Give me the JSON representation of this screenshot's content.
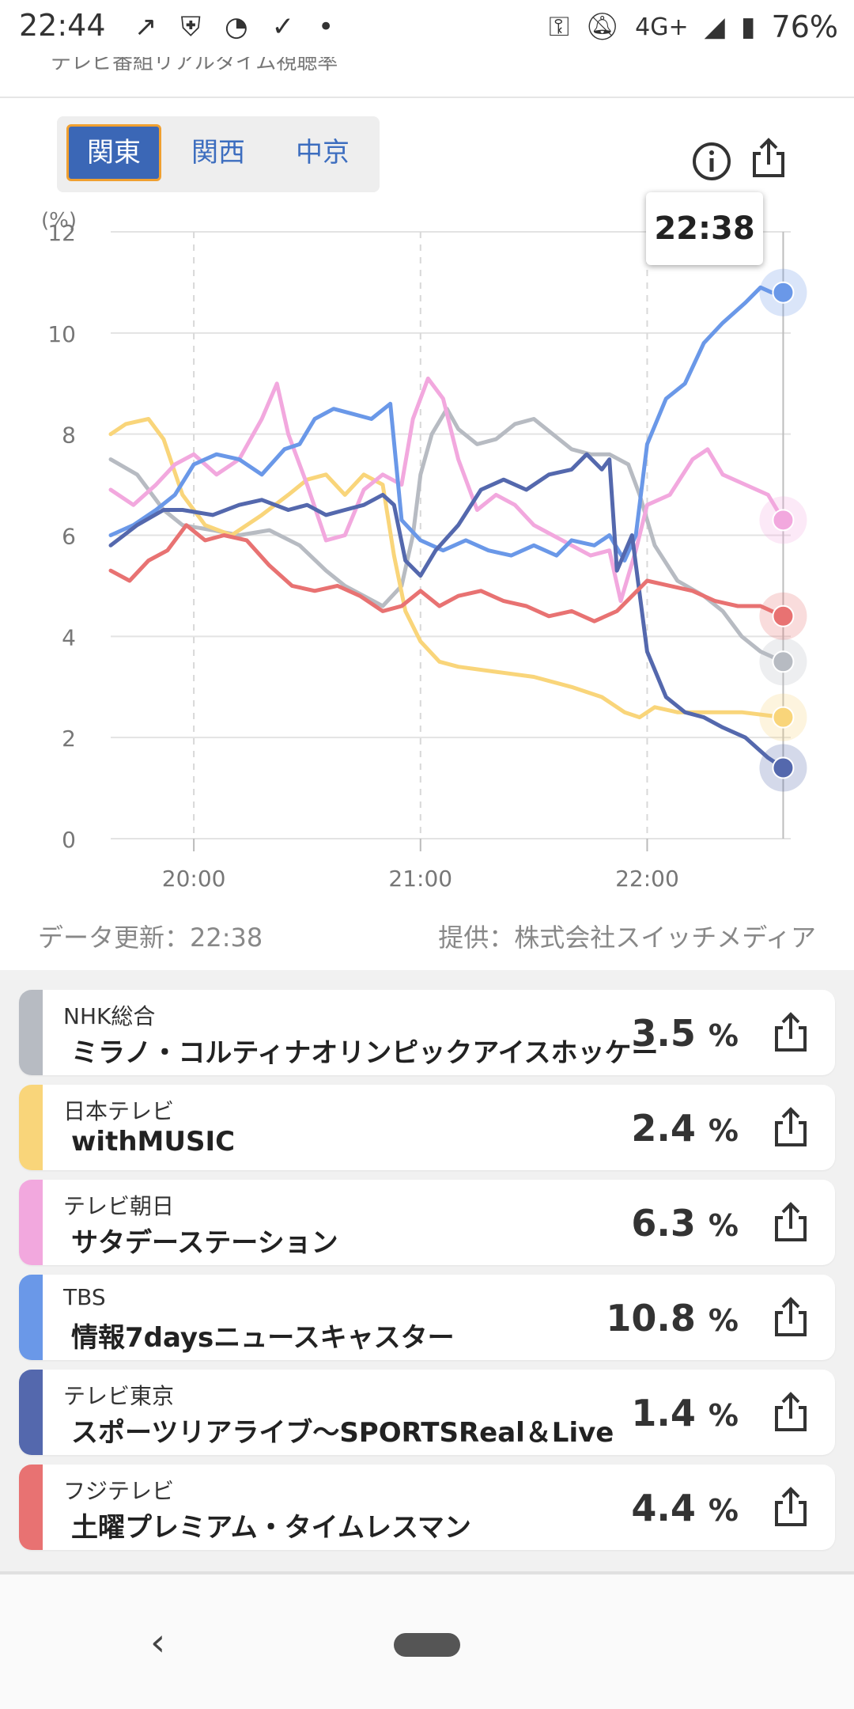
{
  "status_bar": {
    "time": "22:44",
    "network": "4G+",
    "battery": "76%"
  },
  "page": {
    "title": "テレビ番組リアルタイム視聴率"
  },
  "region_tabs": [
    {
      "label": "関東",
      "active": true
    },
    {
      "label": "関西",
      "active": false
    },
    {
      "label": "中京",
      "active": false
    }
  ],
  "tooltip_time": "22:38",
  "footer": {
    "updated": "データ更新：22:38",
    "provider": "提供：株式会社スイッチメディア"
  },
  "chart_data": {
    "type": "line",
    "ylabel": "(%)",
    "ylim": [
      0,
      12
    ],
    "yticks": [
      "0",
      "2",
      "4",
      "6",
      "8",
      "10",
      "12"
    ],
    "xticks": [
      "20:00",
      "21:00",
      "22:00"
    ],
    "x_start_minutes": -22,
    "x_end_minutes": 158,
    "x_unit": "minutes after 20:00",
    "series": [
      {
        "name": "NHK総合",
        "color": "#b7bbc2",
        "values": [
          [
            -22,
            7.5
          ],
          [
            -15,
            7.2
          ],
          [
            -8,
            6.5
          ],
          [
            -3,
            6.2
          ],
          [
            5,
            6.1
          ],
          [
            12,
            6.0
          ],
          [
            20,
            6.1
          ],
          [
            28,
            5.8
          ],
          [
            35,
            5.3
          ],
          [
            40,
            5.0
          ],
          [
            45,
            4.8
          ],
          [
            50,
            4.6
          ],
          [
            55,
            5.0
          ],
          [
            58,
            6.0
          ],
          [
            60,
            7.2
          ],
          [
            63,
            8.0
          ],
          [
            67,
            8.5
          ],
          [
            70,
            8.1
          ],
          [
            75,
            7.8
          ],
          [
            80,
            7.9
          ],
          [
            85,
            8.2
          ],
          [
            90,
            8.3
          ],
          [
            95,
            8.0
          ],
          [
            100,
            7.7
          ],
          [
            105,
            7.6
          ],
          [
            110,
            7.6
          ],
          [
            115,
            7.4
          ],
          [
            118,
            6.8
          ],
          [
            122,
            5.8
          ],
          [
            128,
            5.1
          ],
          [
            135,
            4.8
          ],
          [
            140,
            4.5
          ],
          [
            145,
            4.0
          ],
          [
            150,
            3.7
          ],
          [
            156,
            3.5
          ]
        ]
      },
      {
        "name": "日本テレビ",
        "color": "#f9d57a",
        "values": [
          [
            -22,
            8.0
          ],
          [
            -18,
            8.2
          ],
          [
            -12,
            8.3
          ],
          [
            -8,
            7.9
          ],
          [
            -3,
            6.8
          ],
          [
            3,
            6.2
          ],
          [
            10,
            6.0
          ],
          [
            18,
            6.4
          ],
          [
            25,
            6.8
          ],
          [
            30,
            7.1
          ],
          [
            35,
            7.2
          ],
          [
            40,
            6.8
          ],
          [
            45,
            7.2
          ],
          [
            50,
            7.0
          ],
          [
            53,
            5.6
          ],
          [
            56,
            4.5
          ],
          [
            60,
            3.9
          ],
          [
            65,
            3.5
          ],
          [
            70,
            3.4
          ],
          [
            80,
            3.3
          ],
          [
            90,
            3.2
          ],
          [
            100,
            3.0
          ],
          [
            108,
            2.8
          ],
          [
            114,
            2.5
          ],
          [
            118,
            2.4
          ],
          [
            122,
            2.6
          ],
          [
            128,
            2.5
          ],
          [
            135,
            2.5
          ],
          [
            145,
            2.5
          ],
          [
            156,
            2.4
          ]
        ]
      },
      {
        "name": "テレビ朝日",
        "color": "#f2a8de",
        "values": [
          [
            -22,
            6.9
          ],
          [
            -16,
            6.6
          ],
          [
            -10,
            7.0
          ],
          [
            -5,
            7.4
          ],
          [
            0,
            7.6
          ],
          [
            6,
            7.2
          ],
          [
            12,
            7.5
          ],
          [
            18,
            8.3
          ],
          [
            22,
            9.0
          ],
          [
            25,
            8.0
          ],
          [
            30,
            7.0
          ],
          [
            35,
            5.9
          ],
          [
            40,
            6.0
          ],
          [
            45,
            6.9
          ],
          [
            50,
            7.2
          ],
          [
            55,
            7.0
          ],
          [
            58,
            8.3
          ],
          [
            62,
            9.1
          ],
          [
            66,
            8.7
          ],
          [
            70,
            7.5
          ],
          [
            75,
            6.5
          ],
          [
            80,
            6.8
          ],
          [
            85,
            6.6
          ],
          [
            90,
            6.2
          ],
          [
            95,
            6.0
          ],
          [
            100,
            5.8
          ],
          [
            105,
            5.6
          ],
          [
            110,
            5.7
          ],
          [
            113,
            4.7
          ],
          [
            117,
            5.7
          ],
          [
            120,
            6.6
          ],
          [
            126,
            6.8
          ],
          [
            132,
            7.5
          ],
          [
            136,
            7.7
          ],
          [
            140,
            7.2
          ],
          [
            146,
            7.0
          ],
          [
            152,
            6.8
          ],
          [
            156,
            6.3
          ]
        ]
      },
      {
        "name": "TBS",
        "color": "#6a98e8",
        "values": [
          [
            -22,
            6.0
          ],
          [
            -16,
            6.2
          ],
          [
            -10,
            6.5
          ],
          [
            -5,
            6.8
          ],
          [
            0,
            7.4
          ],
          [
            6,
            7.6
          ],
          [
            12,
            7.5
          ],
          [
            18,
            7.2
          ],
          [
            24,
            7.7
          ],
          [
            28,
            7.8
          ],
          [
            32,
            8.3
          ],
          [
            37,
            8.5
          ],
          [
            42,
            8.4
          ],
          [
            47,
            8.3
          ],
          [
            52,
            8.6
          ],
          [
            55,
            6.3
          ],
          [
            60,
            5.9
          ],
          [
            66,
            5.7
          ],
          [
            72,
            5.9
          ],
          [
            78,
            5.7
          ],
          [
            84,
            5.6
          ],
          [
            90,
            5.8
          ],
          [
            96,
            5.6
          ],
          [
            100,
            5.9
          ],
          [
            106,
            5.8
          ],
          [
            110,
            6.0
          ],
          [
            114,
            5.5
          ],
          [
            117,
            6.0
          ],
          [
            120,
            7.8
          ],
          [
            125,
            8.7
          ],
          [
            130,
            9.0
          ],
          [
            135,
            9.8
          ],
          [
            140,
            10.2
          ],
          [
            146,
            10.6
          ],
          [
            150,
            10.9
          ],
          [
            153,
            10.8
          ],
          [
            156,
            10.8
          ]
        ]
      },
      {
        "name": "テレビ東京",
        "color": "#5468ad",
        "values": [
          [
            -22,
            5.8
          ],
          [
            -15,
            6.2
          ],
          [
            -8,
            6.5
          ],
          [
            -3,
            6.5
          ],
          [
            5,
            6.4
          ],
          [
            12,
            6.6
          ],
          [
            18,
            6.7
          ],
          [
            25,
            6.5
          ],
          [
            30,
            6.6
          ],
          [
            35,
            6.4
          ],
          [
            40,
            6.5
          ],
          [
            45,
            6.6
          ],
          [
            50,
            6.8
          ],
          [
            53,
            6.6
          ],
          [
            56,
            5.5
          ],
          [
            60,
            5.2
          ],
          [
            64,
            5.7
          ],
          [
            70,
            6.2
          ],
          [
            76,
            6.9
          ],
          [
            82,
            7.1
          ],
          [
            88,
            6.9
          ],
          [
            94,
            7.2
          ],
          [
            100,
            7.3
          ],
          [
            104,
            7.6
          ],
          [
            108,
            7.3
          ],
          [
            110,
            7.5
          ],
          [
            112,
            5.3
          ],
          [
            116,
            6.0
          ],
          [
            120,
            3.7
          ],
          [
            125,
            2.8
          ],
          [
            130,
            2.5
          ],
          [
            135,
            2.4
          ],
          [
            140,
            2.2
          ],
          [
            146,
            2.0
          ],
          [
            152,
            1.6
          ],
          [
            156,
            1.4
          ]
        ]
      },
      {
        "name": "フジテレビ",
        "color": "#e87272",
        "values": [
          [
            -22,
            5.3
          ],
          [
            -17,
            5.1
          ],
          [
            -12,
            5.5
          ],
          [
            -7,
            5.7
          ],
          [
            -2,
            6.2
          ],
          [
            3,
            5.9
          ],
          [
            8,
            6.0
          ],
          [
            14,
            5.9
          ],
          [
            20,
            5.4
          ],
          [
            26,
            5.0
          ],
          [
            32,
            4.9
          ],
          [
            38,
            5.0
          ],
          [
            44,
            4.8
          ],
          [
            50,
            4.5
          ],
          [
            55,
            4.6
          ],
          [
            60,
            4.9
          ],
          [
            65,
            4.6
          ],
          [
            70,
            4.8
          ],
          [
            76,
            4.9
          ],
          [
            82,
            4.7
          ],
          [
            88,
            4.6
          ],
          [
            94,
            4.4
          ],
          [
            100,
            4.5
          ],
          [
            106,
            4.3
          ],
          [
            112,
            4.5
          ],
          [
            116,
            4.8
          ],
          [
            120,
            5.1
          ],
          [
            126,
            5.0
          ],
          [
            132,
            4.9
          ],
          [
            138,
            4.7
          ],
          [
            144,
            4.6
          ],
          [
            150,
            4.6
          ],
          [
            156,
            4.4
          ]
        ]
      }
    ]
  },
  "list": [
    {
      "station": "NHK総合",
      "program": "ミラノ・コルティナオリンピックアイスホッケー",
      "rating": "3.5",
      "unit": "%",
      "color": "#b7bbc2"
    },
    {
      "station": "日本テレビ",
      "program": "withMUSIC",
      "rating": "2.4",
      "unit": "%",
      "color": "#f9d57a"
    },
    {
      "station": "テレビ朝日",
      "program": "サタデーステーション",
      "rating": "6.3",
      "unit": "%",
      "color": "#f2a8de"
    },
    {
      "station": "TBS",
      "program": "情報7daysニュースキャスター",
      "rating": "10.8",
      "unit": "%",
      "color": "#6a98e8"
    },
    {
      "station": "テレビ東京",
      "program": "スポーツリアライブ～SPORTSReal＆Live",
      "rating": "1.4",
      "unit": "%",
      "color": "#5468ad"
    },
    {
      "station": "フジテレビ",
      "program": "土曜プレミアム・タイムレスマン",
      "rating": "4.4",
      "unit": "%",
      "color": "#e87272"
    }
  ]
}
